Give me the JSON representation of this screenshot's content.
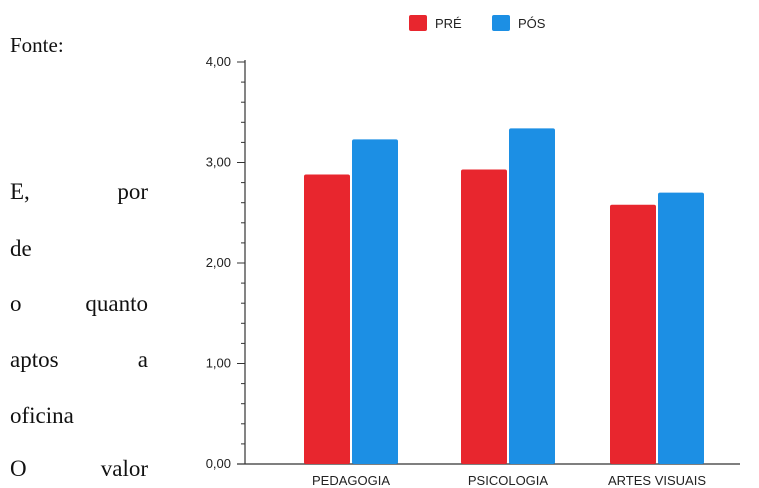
{
  "side_text": {
    "fonte": "Fonte:",
    "line1_left": "E,",
    "line1_right": "por",
    "line2": "de",
    "line3_left": "o",
    "line3_right": "quanto",
    "line4_left": "aptos",
    "line4_right": "a",
    "line5": "oficina",
    "line6_left": "O",
    "line6_right": "valor"
  },
  "chart_data": {
    "type": "bar",
    "categories": [
      "PEDAGOGIA",
      "PSICOLOGIA",
      "ARTES VISUAIS"
    ],
    "series": [
      {
        "name": "PRÉ",
        "color": "#e8262e",
        "values": [
          2.88,
          2.93,
          2.58
        ]
      },
      {
        "name": "PÓS",
        "color": "#1c8fe4",
        "values": [
          3.23,
          3.34,
          2.7
        ]
      }
    ],
    "ylim": [
      0,
      4
    ],
    "yticks": [
      "0,00",
      "1,00",
      "2,00",
      "3,00",
      "4,00"
    ],
    "legend_position": "top-center",
    "grid": false
  }
}
